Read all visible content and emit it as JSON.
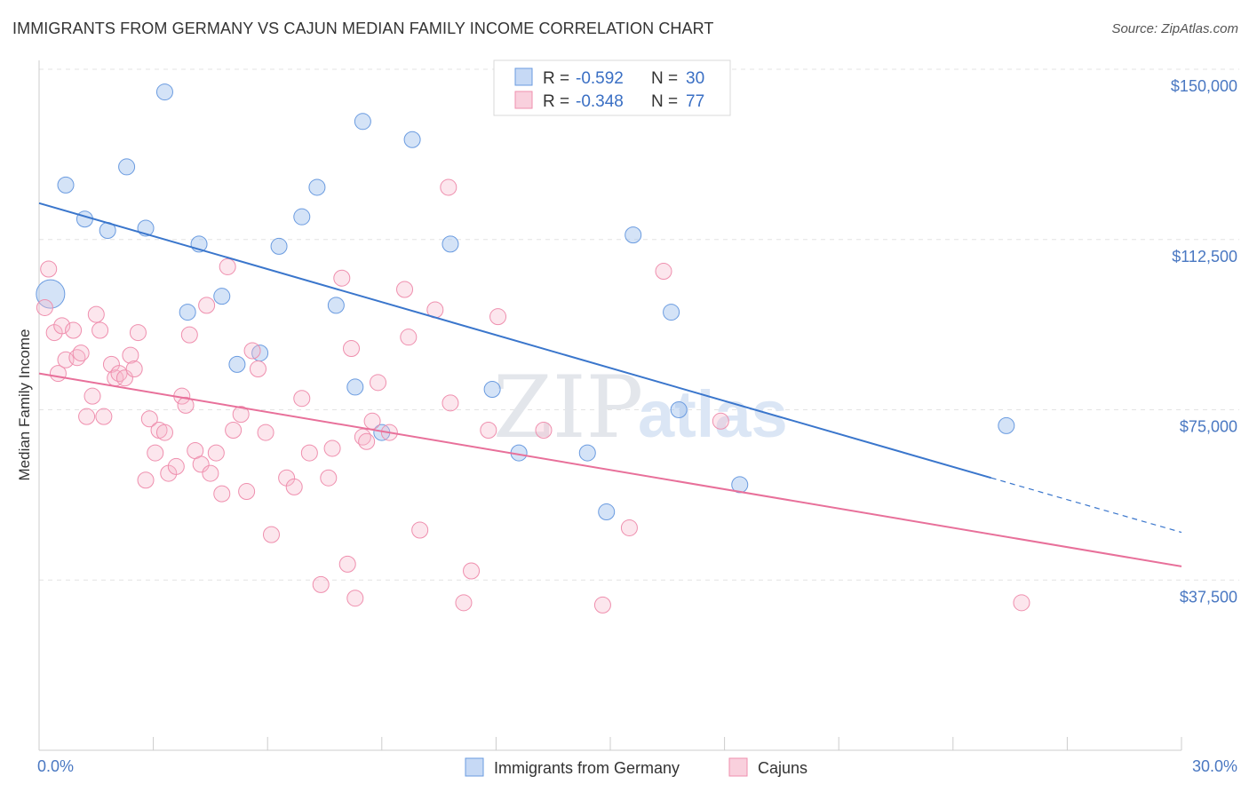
{
  "header": {
    "title": "IMMIGRANTS FROM GERMANY VS CAJUN MEDIAN FAMILY INCOME CORRELATION CHART",
    "source": "Source: ZipAtlas.com"
  },
  "watermark": {
    "zip": "ZIP",
    "atlas": "atlas"
  },
  "legend": {
    "r_label": "R =",
    "n_label": "N =",
    "entries": [
      {
        "r": "-0.592",
        "n": "30",
        "color": "#6a9be0"
      },
      {
        "r": "-0.348",
        "n": "77",
        "color": "#ef8fae"
      }
    ]
  },
  "bottom_legend": [
    {
      "label": "Immigrants from Germany",
      "color": "#6a9be0"
    },
    {
      "label": "Cajuns",
      "color": "#ef8fae"
    }
  ],
  "chart_data": {
    "type": "scatter",
    "title": "IMMIGRANTS FROM GERMANY VS CAJUN MEDIAN FAMILY INCOME CORRELATION CHART",
    "xlabel": "",
    "ylabel": "Median Family Income",
    "xlim": [
      0,
      30
    ],
    "ylim": [
      0,
      157500
    ],
    "x_tick_labels": [
      "0.0%",
      "30.0%"
    ],
    "y_ticks": [
      {
        "value": 37500,
        "label": "$37,500"
      },
      {
        "value": 75000,
        "label": "$75,000"
      },
      {
        "value": 112500,
        "label": "$112,500"
      },
      {
        "value": 150000,
        "label": "$150,000"
      }
    ],
    "series": [
      {
        "name": "Immigrants from Germany",
        "color": "#6a9be0",
        "r": -0.592,
        "n": 30,
        "trend": {
          "x0": 0,
          "y0": 120500,
          "x1": 25.0,
          "y1": 60000,
          "dash_to_x": 30,
          "dash_to_y": 48000
        },
        "points": [
          [
            0.3,
            100500,
            16
          ],
          [
            0.7,
            124500,
            9
          ],
          [
            1.2,
            117000,
            9
          ],
          [
            1.8,
            114500,
            9
          ],
          [
            2.3,
            128500,
            9
          ],
          [
            2.8,
            115000,
            9
          ],
          [
            3.3,
            145000,
            9
          ],
          [
            3.9,
            96500,
            9
          ],
          [
            4.2,
            111500,
            9
          ],
          [
            4.8,
            100000,
            9
          ],
          [
            5.2,
            85000,
            9
          ],
          [
            5.8,
            87500,
            9
          ],
          [
            6.3,
            111000,
            9
          ],
          [
            6.9,
            117500,
            9
          ],
          [
            7.3,
            124000,
            9
          ],
          [
            7.8,
            98000,
            9
          ],
          [
            8.3,
            80000,
            9
          ],
          [
            8.5,
            138500,
            9
          ],
          [
            9.0,
            70000,
            9
          ],
          [
            9.8,
            134500,
            9
          ],
          [
            10.8,
            111500,
            9
          ],
          [
            11.9,
            79500,
            9
          ],
          [
            12.6,
            65500,
            9
          ],
          [
            14.4,
            65500,
            9
          ],
          [
            14.9,
            52500,
            9
          ],
          [
            15.6,
            113500,
            9
          ],
          [
            16.6,
            96500,
            9
          ],
          [
            16.8,
            75000,
            9
          ],
          [
            18.4,
            58500,
            9
          ],
          [
            25.4,
            71500,
            9
          ]
        ]
      },
      {
        "name": "Cajuns",
        "color": "#ef8fae",
        "r": -0.348,
        "n": 77,
        "trend": {
          "x0": 0,
          "y0": 83000,
          "x1": 30,
          "y1": 40500
        },
        "points": [
          [
            0.15,
            97500
          ],
          [
            0.25,
            106000
          ],
          [
            0.4,
            92000
          ],
          [
            0.5,
            83000
          ],
          [
            0.6,
            93500
          ],
          [
            0.7,
            86000
          ],
          [
            0.9,
            92500
          ],
          [
            1.0,
            86500
          ],
          [
            1.1,
            87500
          ],
          [
            1.25,
            73500
          ],
          [
            1.4,
            78000
          ],
          [
            1.5,
            96000
          ],
          [
            1.6,
            92500
          ],
          [
            1.7,
            73500
          ],
          [
            1.9,
            85000
          ],
          [
            2.0,
            82000
          ],
          [
            2.1,
            83000
          ],
          [
            2.25,
            82000
          ],
          [
            2.4,
            87000
          ],
          [
            2.5,
            84000
          ],
          [
            2.6,
            92000
          ],
          [
            2.8,
            59500
          ],
          [
            2.9,
            73000
          ],
          [
            3.05,
            65500
          ],
          [
            3.15,
            70500
          ],
          [
            3.3,
            70000
          ],
          [
            3.4,
            61000
          ],
          [
            3.6,
            62500
          ],
          [
            3.75,
            78000
          ],
          [
            3.85,
            76000
          ],
          [
            3.95,
            91500
          ],
          [
            4.1,
            66000
          ],
          [
            4.25,
            63000
          ],
          [
            4.4,
            98000
          ],
          [
            4.5,
            61000
          ],
          [
            4.65,
            65500
          ],
          [
            4.8,
            56500
          ],
          [
            4.95,
            106500
          ],
          [
            5.1,
            70500
          ],
          [
            5.3,
            74000
          ],
          [
            5.45,
            57000
          ],
          [
            5.6,
            88000
          ],
          [
            5.75,
            84000
          ],
          [
            5.95,
            70000
          ],
          [
            6.1,
            47500
          ],
          [
            6.5,
            60000
          ],
          [
            6.7,
            58000
          ],
          [
            6.9,
            77500
          ],
          [
            7.1,
            65500
          ],
          [
            7.4,
            36500
          ],
          [
            7.6,
            60000
          ],
          [
            7.7,
            66500
          ],
          [
            7.95,
            104000
          ],
          [
            8.1,
            41000
          ],
          [
            8.2,
            88500
          ],
          [
            8.3,
            33500
          ],
          [
            8.5,
            69000
          ],
          [
            8.6,
            68000
          ],
          [
            8.75,
            72500
          ],
          [
            8.9,
            81000
          ],
          [
            9.2,
            70000
          ],
          [
            9.6,
            101500
          ],
          [
            9.7,
            91000
          ],
          [
            10.0,
            48500
          ],
          [
            10.4,
            97000
          ],
          [
            10.75,
            124000
          ],
          [
            11.15,
            32500
          ],
          [
            11.35,
            39500
          ],
          [
            11.8,
            70500
          ],
          [
            12.05,
            95500
          ],
          [
            13.25,
            70500
          ],
          [
            14.8,
            32000
          ],
          [
            15.5,
            49000
          ],
          [
            16.4,
            105500
          ],
          [
            17.9,
            72500
          ],
          [
            25.8,
            32500
          ],
          [
            10.8,
            76500
          ]
        ]
      }
    ]
  }
}
